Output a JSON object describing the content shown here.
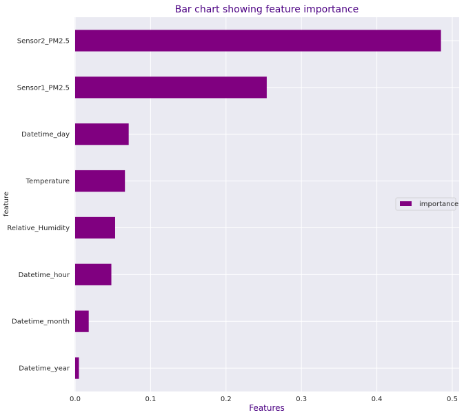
{
  "chart_data": {
    "type": "bar",
    "orientation": "horizontal",
    "title": "Bar chart showing feature importance",
    "xlabel": "Features",
    "ylabel": "feature",
    "xlim": [
      0,
      0.51
    ],
    "xticks": [
      0.0,
      0.1,
      0.2,
      0.3,
      0.4,
      0.5
    ],
    "xtick_labels": [
      "0.0",
      "0.1",
      "0.2",
      "0.3",
      "0.4",
      "0.5"
    ],
    "grid": true,
    "legend_position": "center-right",
    "series": [
      {
        "name": "importance",
        "color": "#800080",
        "categories": [
          "Sensor2_PM2.5",
          "Sensor1_PM2.5",
          "Datetime_day",
          "Temperature",
          "Relative_Humidity",
          "Datetime_hour",
          "Datetime_month",
          "Datetime_year"
        ],
        "values": [
          0.485,
          0.254,
          0.071,
          0.066,
          0.053,
          0.048,
          0.018,
          0.005
        ]
      }
    ]
  }
}
